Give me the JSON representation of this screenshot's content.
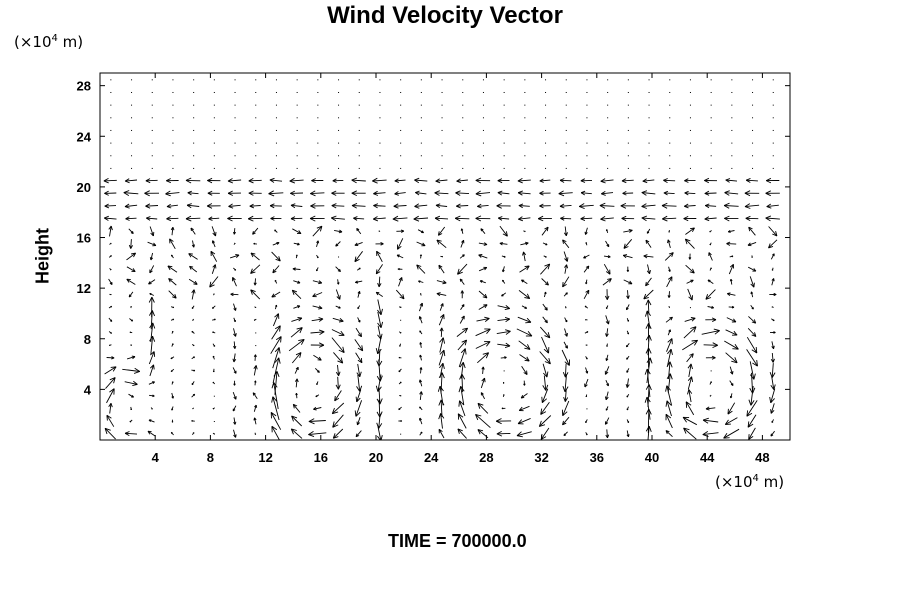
{
  "chart_data": {
    "type": "vector-field",
    "title": "Wind Velocity Vector",
    "ylabel": "Height",
    "xunit_prefix": "(×10",
    "xunit_exp": "4",
    "xunit_suffix": " m)",
    "yunit_prefix": "(×10",
    "yunit_exp": "4",
    "yunit_suffix": " m)",
    "xlim": [
      0,
      50
    ],
    "ylim": [
      0,
      29
    ],
    "xticks": [
      4,
      8,
      12,
      16,
      20,
      24,
      28,
      32,
      36,
      40,
      44,
      48
    ],
    "yticks": [
      4,
      8,
      12,
      16,
      20,
      24,
      28
    ],
    "grid": false,
    "boundary_layer_top": 10.5,
    "jet_level": [
      17.5,
      21
    ],
    "cells": [
      {
        "center_x": 2,
        "center_y": 2.5,
        "radius_x": 2.5,
        "radius_y": 3.5,
        "rotation": "clockwise"
      },
      {
        "center_x": 15.5,
        "center_y": 4.5,
        "radius_x": 3.5,
        "radius_y": 5,
        "rotation": "clockwise"
      },
      {
        "center_x": 29.5,
        "center_y": 4.5,
        "radius_x": 4.5,
        "radius_y": 5.5,
        "rotation": "clockwise"
      },
      {
        "center_x": 44.5,
        "center_y": 4.5,
        "radius_x": 4,
        "radius_y": 5,
        "rotation": "clockwise"
      }
    ],
    "updrafts_x": [
      4,
      10.5,
      12,
      20,
      24,
      37.5,
      40
    ],
    "grid_spacing_x": 1.5,
    "grid_spacing_y": 1.0
  },
  "footer": {
    "time_label": "TIME = 700000.0"
  }
}
